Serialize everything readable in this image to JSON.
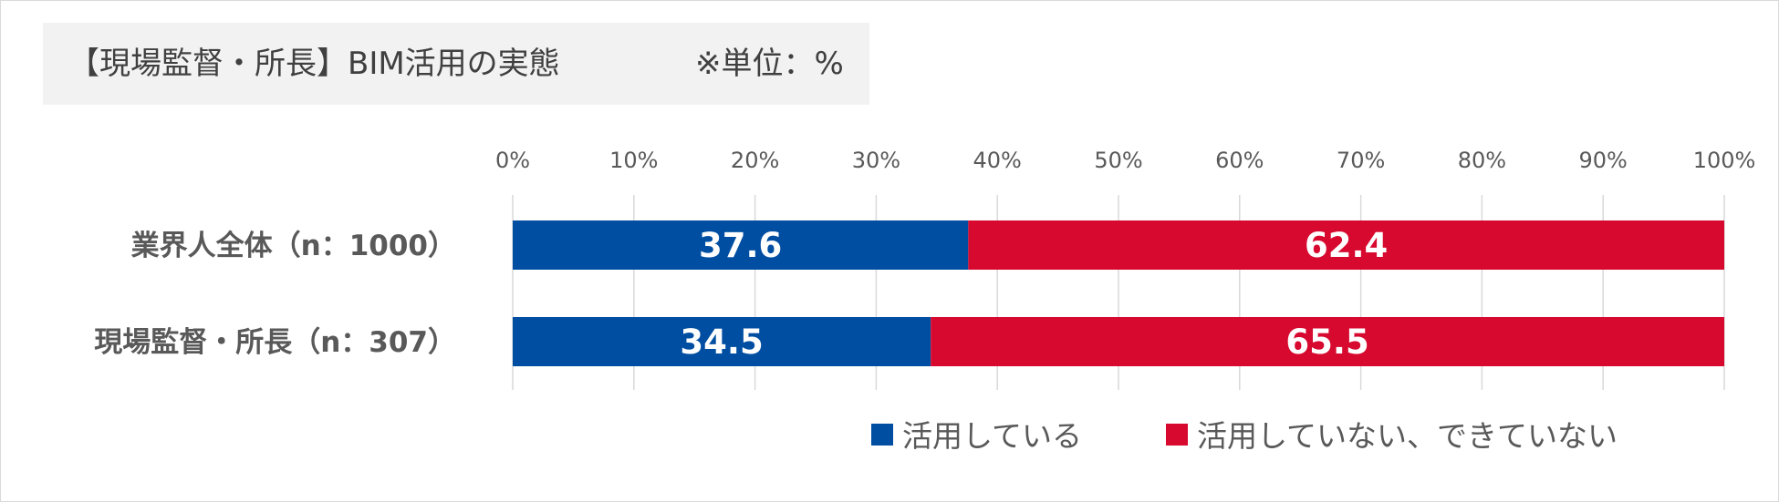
{
  "title": {
    "text": "【現場監督・所長】BIM活用の実態",
    "unit": "※単位：%"
  },
  "colors": {
    "using": "#004ea2",
    "not_using": "#d7092f",
    "grid": "#d9d9d9",
    "text": "#595959"
  },
  "chart_data": {
    "type": "bar",
    "orientation": "horizontal",
    "stacked": "percent",
    "categories": [
      "業界人全体（n：1000）",
      "現場監督・所長（n：307）"
    ],
    "series": [
      {
        "name": "活用している",
        "values": [
          37.6,
          34.5
        ]
      },
      {
        "name": "活用していない、できていない",
        "values": [
          62.4,
          65.5
        ]
      }
    ],
    "xlim": [
      0,
      100
    ],
    "x_ticks": [
      "0%",
      "10%",
      "20%",
      "30%",
      "40%",
      "50%",
      "60%",
      "70%",
      "80%",
      "90%",
      "100%"
    ],
    "grid": true,
    "legend_position": "bottom"
  }
}
